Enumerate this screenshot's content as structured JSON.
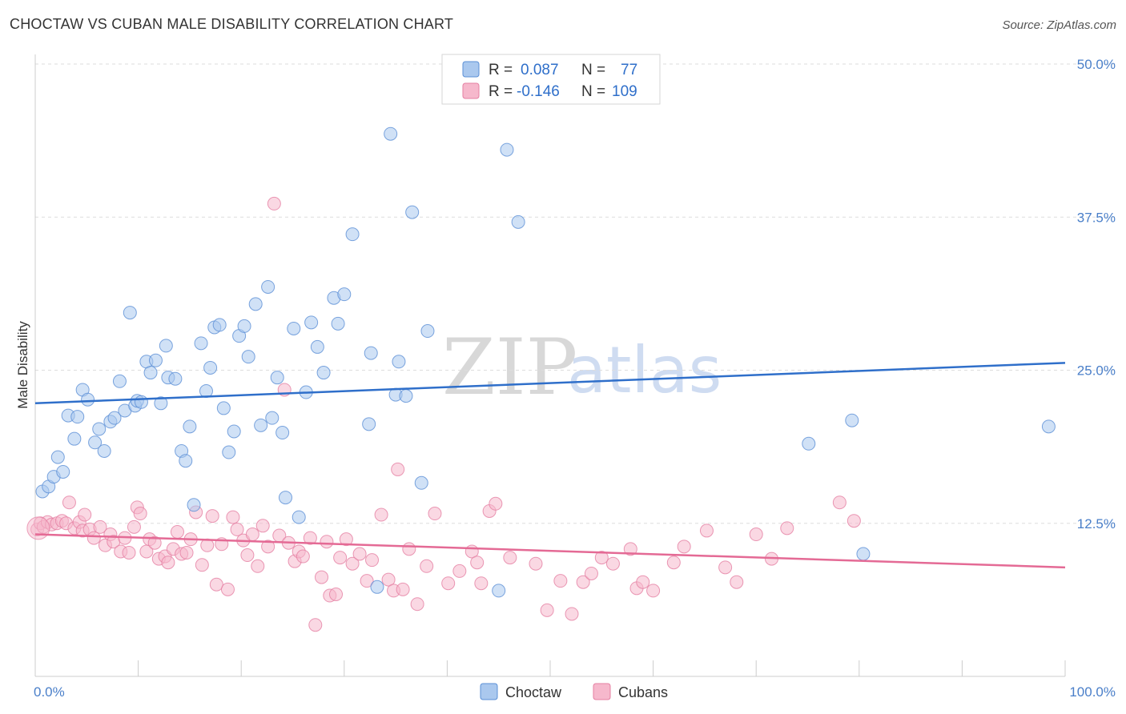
{
  "title": "CHOCTAW VS CUBAN MALE DISABILITY CORRELATION CHART",
  "source": "Source: ZipAtlas.com",
  "watermark": {
    "zip": "ZIP",
    "atlas": "atlas"
  },
  "colors": {
    "choctaw_fill": "#aac8ee",
    "choctaw_stroke": "#5b8fd6",
    "choctaw_line": "#2f6fca",
    "cubans_fill": "#f6b8cc",
    "cubans_stroke": "#e57fa2",
    "cubans_line": "#e46a95",
    "grid": "#dddddd"
  },
  "legend": {
    "r_label": "R =",
    "n_label": "N =",
    "choctaw_r": "0.087",
    "choctaw_n": "77",
    "cubans_r": "-0.146",
    "cubans_n": "109"
  },
  "chart_data": {
    "type": "scatter",
    "title": "CHOCTAW VS CUBAN MALE DISABILITY CORRELATION CHART",
    "xlabel": "",
    "ylabel": "Male Disability",
    "xlim": [
      0,
      100
    ],
    "ylim": [
      0,
      50
    ],
    "x_tick_labels": [
      "0.0%",
      "100.0%"
    ],
    "y_ticks": [
      12.5,
      25.0,
      37.5,
      50.0
    ],
    "y_tick_labels": [
      "12.5%",
      "25.0%",
      "37.5%",
      "50.0%"
    ],
    "legend_position": "top-center",
    "series": [
      {
        "name": "Choctaw",
        "trend": {
          "x": [
            0,
            100
          ],
          "y": [
            22.3,
            25.6
          ]
        },
        "points": [
          [
            0.7,
            15.1
          ],
          [
            1.3,
            15.5
          ],
          [
            1.8,
            16.3
          ],
          [
            2.2,
            17.9
          ],
          [
            2.7,
            16.7
          ],
          [
            3.2,
            21.3
          ],
          [
            4.1,
            21.2
          ],
          [
            3.8,
            19.4
          ],
          [
            4.6,
            23.4
          ],
          [
            5.1,
            22.6
          ],
          [
            5.8,
            19.1
          ],
          [
            6.2,
            20.2
          ],
          [
            6.7,
            18.4
          ],
          [
            7.3,
            20.8
          ],
          [
            7.7,
            21.1
          ],
          [
            8.2,
            24.1
          ],
          [
            8.7,
            21.7
          ],
          [
            9.2,
            29.7
          ],
          [
            9.7,
            22.1
          ],
          [
            9.9,
            22.5
          ],
          [
            10.3,
            22.4
          ],
          [
            10.8,
            25.7
          ],
          [
            11.2,
            24.8
          ],
          [
            11.7,
            25.8
          ],
          [
            12.2,
            22.3
          ],
          [
            12.7,
            27.0
          ],
          [
            12.9,
            24.4
          ],
          [
            13.6,
            24.3
          ],
          [
            14.2,
            18.4
          ],
          [
            14.6,
            17.6
          ],
          [
            15.0,
            20.4
          ],
          [
            15.4,
            14.0
          ],
          [
            16.1,
            27.2
          ],
          [
            16.6,
            23.3
          ],
          [
            17.0,
            25.2
          ],
          [
            17.4,
            28.5
          ],
          [
            17.9,
            28.7
          ],
          [
            18.3,
            21.9
          ],
          [
            18.8,
            18.3
          ],
          [
            19.3,
            20.0
          ],
          [
            19.8,
            27.8
          ],
          [
            20.3,
            28.6
          ],
          [
            20.7,
            26.1
          ],
          [
            21.4,
            30.4
          ],
          [
            21.9,
            20.5
          ],
          [
            22.6,
            31.8
          ],
          [
            23.0,
            21.1
          ],
          [
            23.5,
            24.4
          ],
          [
            24.0,
            19.9
          ],
          [
            24.3,
            14.6
          ],
          [
            25.1,
            28.4
          ],
          [
            25.6,
            13.0
          ],
          [
            26.3,
            23.2
          ],
          [
            26.8,
            28.9
          ],
          [
            27.4,
            26.9
          ],
          [
            28.0,
            24.8
          ],
          [
            29.0,
            30.9
          ],
          [
            29.4,
            28.8
          ],
          [
            30.0,
            31.2
          ],
          [
            30.8,
            36.1
          ],
          [
            32.4,
            20.6
          ],
          [
            32.6,
            26.4
          ],
          [
            33.2,
            7.3
          ],
          [
            34.5,
            44.3
          ],
          [
            35.0,
            23.0
          ],
          [
            35.3,
            25.7
          ],
          [
            36.0,
            22.9
          ],
          [
            36.6,
            37.9
          ],
          [
            37.5,
            15.8
          ],
          [
            38.1,
            28.2
          ],
          [
            45.0,
            7.0
          ],
          [
            45.8,
            43.0
          ],
          [
            46.9,
            37.1
          ],
          [
            75.1,
            19.0
          ],
          [
            79.3,
            20.9
          ],
          [
            80.4,
            10.0
          ],
          [
            98.4,
            20.4
          ]
        ]
      },
      {
        "name": "Cubans",
        "trend": {
          "x": [
            0,
            100
          ],
          "y": [
            11.6,
            8.9
          ]
        },
        "points": [
          [
            0.2,
            12.0
          ],
          [
            0.5,
            12.5
          ],
          [
            0.8,
            12.2
          ],
          [
            1.2,
            12.6
          ],
          [
            1.6,
            12.4
          ],
          [
            2.1,
            12.5
          ],
          [
            2.6,
            12.7
          ],
          [
            3.0,
            12.5
          ],
          [
            3.3,
            14.2
          ],
          [
            3.8,
            12.1
          ],
          [
            4.3,
            12.6
          ],
          [
            4.6,
            11.9
          ],
          [
            4.8,
            13.2
          ],
          [
            5.3,
            12.0
          ],
          [
            5.7,
            11.3
          ],
          [
            6.3,
            12.2
          ],
          [
            6.8,
            10.7
          ],
          [
            7.3,
            11.6
          ],
          [
            7.6,
            11.0
          ],
          [
            8.3,
            10.2
          ],
          [
            8.7,
            11.3
          ],
          [
            9.1,
            10.1
          ],
          [
            9.6,
            12.2
          ],
          [
            9.9,
            13.8
          ],
          [
            10.2,
            13.3
          ],
          [
            10.8,
            10.2
          ],
          [
            11.1,
            11.2
          ],
          [
            11.6,
            10.9
          ],
          [
            12.0,
            9.6
          ],
          [
            12.6,
            9.8
          ],
          [
            12.9,
            9.3
          ],
          [
            13.4,
            10.4
          ],
          [
            13.8,
            11.8
          ],
          [
            14.2,
            10.0
          ],
          [
            14.7,
            10.1
          ],
          [
            15.1,
            11.2
          ],
          [
            15.6,
            13.4
          ],
          [
            16.2,
            9.1
          ],
          [
            16.7,
            10.7
          ],
          [
            17.2,
            13.1
          ],
          [
            17.6,
            7.5
          ],
          [
            18.1,
            10.8
          ],
          [
            18.7,
            7.1
          ],
          [
            19.2,
            13.0
          ],
          [
            19.6,
            12.0
          ],
          [
            20.2,
            11.1
          ],
          [
            20.6,
            9.9
          ],
          [
            21.1,
            11.6
          ],
          [
            21.6,
            9.0
          ],
          [
            22.1,
            12.3
          ],
          [
            22.6,
            10.6
          ],
          [
            23.2,
            38.6
          ],
          [
            23.7,
            11.5
          ],
          [
            24.2,
            23.4
          ],
          [
            24.6,
            10.9
          ],
          [
            25.2,
            9.4
          ],
          [
            25.6,
            10.2
          ],
          [
            26.0,
            9.8
          ],
          [
            26.7,
            11.3
          ],
          [
            27.2,
            4.2
          ],
          [
            27.8,
            8.1
          ],
          [
            28.3,
            11.0
          ],
          [
            28.6,
            6.6
          ],
          [
            29.2,
            6.7
          ],
          [
            29.6,
            9.7
          ],
          [
            30.2,
            11.2
          ],
          [
            30.8,
            9.2
          ],
          [
            31.5,
            10.0
          ],
          [
            32.2,
            7.8
          ],
          [
            32.7,
            9.5
          ],
          [
            33.6,
            13.2
          ],
          [
            34.3,
            7.9
          ],
          [
            34.8,
            7.0
          ],
          [
            35.2,
            16.9
          ],
          [
            35.7,
            7.1
          ],
          [
            36.3,
            10.4
          ],
          [
            37.1,
            5.9
          ],
          [
            38.0,
            9.0
          ],
          [
            38.8,
            13.3
          ],
          [
            40.1,
            7.6
          ],
          [
            41.2,
            8.6
          ],
          [
            42.4,
            10.2
          ],
          [
            42.9,
            9.3
          ],
          [
            43.3,
            7.6
          ],
          [
            44.1,
            13.5
          ],
          [
            44.7,
            14.1
          ],
          [
            46.1,
            9.7
          ],
          [
            48.6,
            9.2
          ],
          [
            49.7,
            5.4
          ],
          [
            51.0,
            7.8
          ],
          [
            52.1,
            5.1
          ],
          [
            53.2,
            7.7
          ],
          [
            54.0,
            8.4
          ],
          [
            55.0,
            9.7
          ],
          [
            56.1,
            9.2
          ],
          [
            57.8,
            10.4
          ],
          [
            58.4,
            7.2
          ],
          [
            59.0,
            7.7
          ],
          [
            60.0,
            7.0
          ],
          [
            62.0,
            9.3
          ],
          [
            63.0,
            10.6
          ],
          [
            65.2,
            11.9
          ],
          [
            67.0,
            8.9
          ],
          [
            68.1,
            7.7
          ],
          [
            70.0,
            11.6
          ],
          [
            71.5,
            9.6
          ],
          [
            73.0,
            12.1
          ],
          [
            78.1,
            14.2
          ],
          [
            79.5,
            12.7
          ]
        ]
      }
    ]
  }
}
